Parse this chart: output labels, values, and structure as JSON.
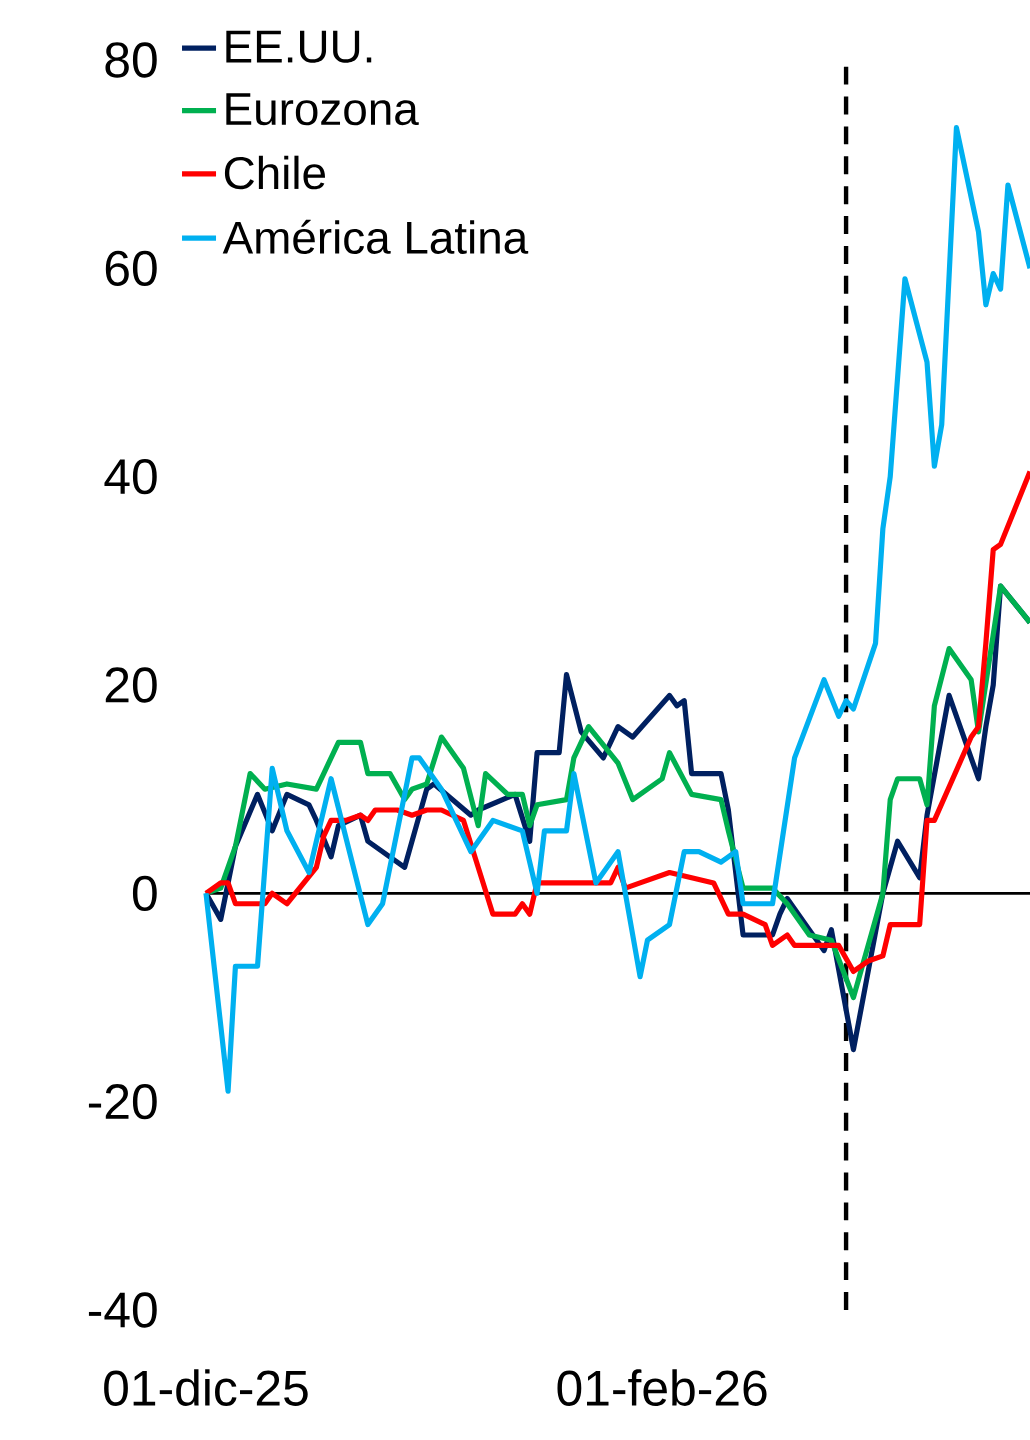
{
  "chart_data": {
    "type": "line",
    "xlim": [
      "2025-12-01",
      "2026-03-23"
    ],
    "ylim": [
      -40,
      80
    ],
    "yticks": [
      -40,
      -20,
      0,
      20,
      40,
      60,
      80
    ],
    "xticks": [
      {
        "value": "2025-12-01",
        "label": "01-dic-25"
      },
      {
        "value": "2026-02-01",
        "label": "01-feb-26"
      }
    ],
    "legend": "top left",
    "line_style": "solid",
    "ref_lines": [
      {
        "axis": "x",
        "value": "2026-02-26",
        "color": "#000000",
        "line_style": "dashed"
      }
    ],
    "series": [
      {
        "name": "EE.UU.",
        "color": "#002060",
        "x": [
          "2025-12-01",
          "2025-12-03",
          "2025-12-05",
          "2025-12-08",
          "2025-12-10",
          "2025-12-12",
          "2025-12-15",
          "2025-12-16",
          "2025-12-18",
          "2025-12-19",
          "2025-12-22",
          "2025-12-23",
          "2025-12-28",
          "2025-12-31",
          "2026-01-01",
          "2026-01-06",
          "2026-01-07",
          "2026-01-12",
          "2026-01-14",
          "2026-01-15",
          "2026-01-18",
          "2026-01-19",
          "2026-01-21",
          "2026-01-24",
          "2026-01-26",
          "2026-01-28",
          "2026-02-02",
          "2026-02-03",
          "2026-02-04",
          "2026-02-05",
          "2026-02-09",
          "2026-02-10",
          "2026-02-12",
          "2026-02-16",
          "2026-02-17",
          "2026-02-18",
          "2026-02-23",
          "2026-02-24",
          "2026-02-27",
          "2026-03-03",
          "2026-03-05",
          "2026-03-08",
          "2026-03-09",
          "2026-03-12",
          "2026-03-16",
          "2026-03-17",
          "2026-03-18",
          "2026-03-19",
          "2026-03-23"
        ],
        "values": [
          0,
          -2.5,
          4.5,
          9.5,
          6,
          9.5,
          8.5,
          7,
          3.5,
          6.5,
          7.5,
          5,
          2.5,
          10,
          10.5,
          7.5,
          8,
          9.5,
          5,
          13.5,
          13.5,
          21,
          15.5,
          13,
          16,
          15,
          19,
          18,
          18.5,
          11.5,
          11.5,
          8,
          -4,
          -4,
          -2,
          -0.5,
          -5.5,
          -3.5,
          -15,
          0,
          5,
          1.5,
          7.5,
          19,
          11,
          16,
          20,
          29.5,
          26
        ]
      },
      {
        "name": "Eurozona",
        "color": "#00b050",
        "x": [
          "2025-12-01",
          "2025-12-03",
          "2025-12-05",
          "2025-12-07",
          "2025-12-09",
          "2025-12-12",
          "2025-12-16",
          "2025-12-17",
          "2025-12-19",
          "2025-12-22",
          "2025-12-23",
          "2025-12-26",
          "2025-12-28",
          "2025-12-29",
          "2025-12-31",
          "2026-01-02",
          "2026-01-05",
          "2026-01-07",
          "2026-01-08",
          "2026-01-11",
          "2026-01-13",
          "2026-01-14",
          "2026-01-15",
          "2026-01-19",
          "2026-01-20",
          "2026-01-22",
          "2026-01-26",
          "2026-01-28",
          "2026-02-01",
          "2026-02-02",
          "2026-02-05",
          "2026-02-09",
          "2026-02-10",
          "2026-02-12",
          "2026-02-16",
          "2026-02-18",
          "2026-02-21",
          "2026-02-24",
          "2026-02-27",
          "2026-03-03",
          "2026-03-04",
          "2026-03-05",
          "2026-03-08",
          "2026-03-09",
          "2026-03-10",
          "2026-03-12",
          "2026-03-15",
          "2026-03-16",
          "2026-03-19",
          "2026-03-23"
        ],
        "values": [
          0,
          0.5,
          4.5,
          11.5,
          10,
          10.5,
          10,
          11.5,
          14.5,
          14.5,
          11.5,
          11.5,
          9,
          10,
          10.5,
          15,
          12,
          6.5,
          11.5,
          9.5,
          9.5,
          6.5,
          8.5,
          9,
          13,
          16,
          12.5,
          9,
          11,
          13.5,
          9.5,
          9,
          6,
          0.5,
          0.5,
          -1,
          -4,
          -4.5,
          -10,
          0,
          9,
          11,
          11,
          8.5,
          18,
          23.5,
          20.5,
          15.5,
          29.5,
          26
        ]
      },
      {
        "name": "Chile",
        "color": "#ff0000",
        "x": [
          "2025-12-01",
          "2025-12-03",
          "2025-12-04",
          "2025-12-05",
          "2025-12-09",
          "2025-12-10",
          "2025-12-12",
          "2025-12-16",
          "2025-12-17",
          "2025-12-18",
          "2025-12-20",
          "2025-12-22",
          "2025-12-23",
          "2025-12-24",
          "2025-12-27",
          "2025-12-29",
          "2025-12-31",
          "2026-01-02",
          "2026-01-05",
          "2026-01-09",
          "2026-01-12",
          "2026-01-13",
          "2026-01-14",
          "2026-01-15",
          "2026-01-25",
          "2026-01-26",
          "2026-01-27",
          "2026-01-29",
          "2026-02-02",
          "2026-02-08",
          "2026-02-10",
          "2026-02-12",
          "2026-02-15",
          "2026-02-16",
          "2026-02-18",
          "2026-02-19",
          "2026-02-25",
          "2026-02-27",
          "2026-03-01",
          "2026-03-03",
          "2026-03-04",
          "2026-03-08",
          "2026-03-09",
          "2026-03-10",
          "2026-03-15",
          "2026-03-16",
          "2026-03-17",
          "2026-03-18",
          "2026-03-19",
          "2026-03-23"
        ],
        "values": [
          0,
          1,
          1,
          -1,
          -1,
          0,
          -1,
          2.5,
          5.5,
          7,
          7,
          7.5,
          7,
          8,
          8,
          7.5,
          8,
          8,
          7,
          -2,
          -2,
          -1,
          -2,
          1,
          1,
          2.5,
          0.5,
          1,
          2,
          1,
          -2,
          -2,
          -3,
          -5,
          -4,
          -5,
          -5,
          -7.5,
          -6.5,
          -6,
          -3,
          -3,
          7,
          7,
          15,
          16,
          24,
          33,
          33.5,
          40.5
        ]
      },
      {
        "name": "América Latina",
        "color": "#00b0f0",
        "x": [
          "2025-12-01",
          "2025-12-04",
          "2025-12-05",
          "2025-12-08",
          "2025-12-10",
          "2025-12-12",
          "2025-12-15",
          "2025-12-18",
          "2025-12-23",
          "2025-12-25",
          "2025-12-29",
          "2025-12-30",
          "2026-01-02",
          "2026-01-06",
          "2026-01-07",
          "2026-01-09",
          "2026-01-13",
          "2026-01-15",
          "2026-01-16",
          "2026-01-19",
          "2026-01-20",
          "2026-01-23",
          "2026-01-26",
          "2026-01-29",
          "2026-01-30",
          "2026-02-02",
          "2026-02-04",
          "2026-02-06",
          "2026-02-09",
          "2026-02-11",
          "2026-02-12",
          "2026-02-16",
          "2026-02-19",
          "2026-02-23",
          "2026-02-25",
          "2026-02-26",
          "2026-02-27",
          "2026-03-02",
          "2026-03-03",
          "2026-03-04",
          "2026-03-06",
          "2026-03-09",
          "2026-03-10",
          "2026-03-11",
          "2026-03-13",
          "2026-03-16",
          "2026-03-17",
          "2026-03-18",
          "2026-03-19",
          "2026-03-20",
          "2026-03-23"
        ],
        "values": [
          0,
          -19,
          -7,
          -7,
          12,
          6,
          2,
          11,
          -3,
          -1,
          13,
          13,
          10,
          4,
          5,
          7,
          6,
          0,
          6,
          6,
          11.5,
          1,
          4,
          -8,
          -4.5,
          -3,
          4,
          4,
          3,
          4,
          -1,
          -1,
          13,
          20.5,
          17,
          18.5,
          17.7,
          24,
          35,
          40,
          59,
          51,
          41,
          45,
          73.5,
          63.5,
          56.5,
          59.5,
          58,
          68,
          60
        ]
      }
    ]
  }
}
